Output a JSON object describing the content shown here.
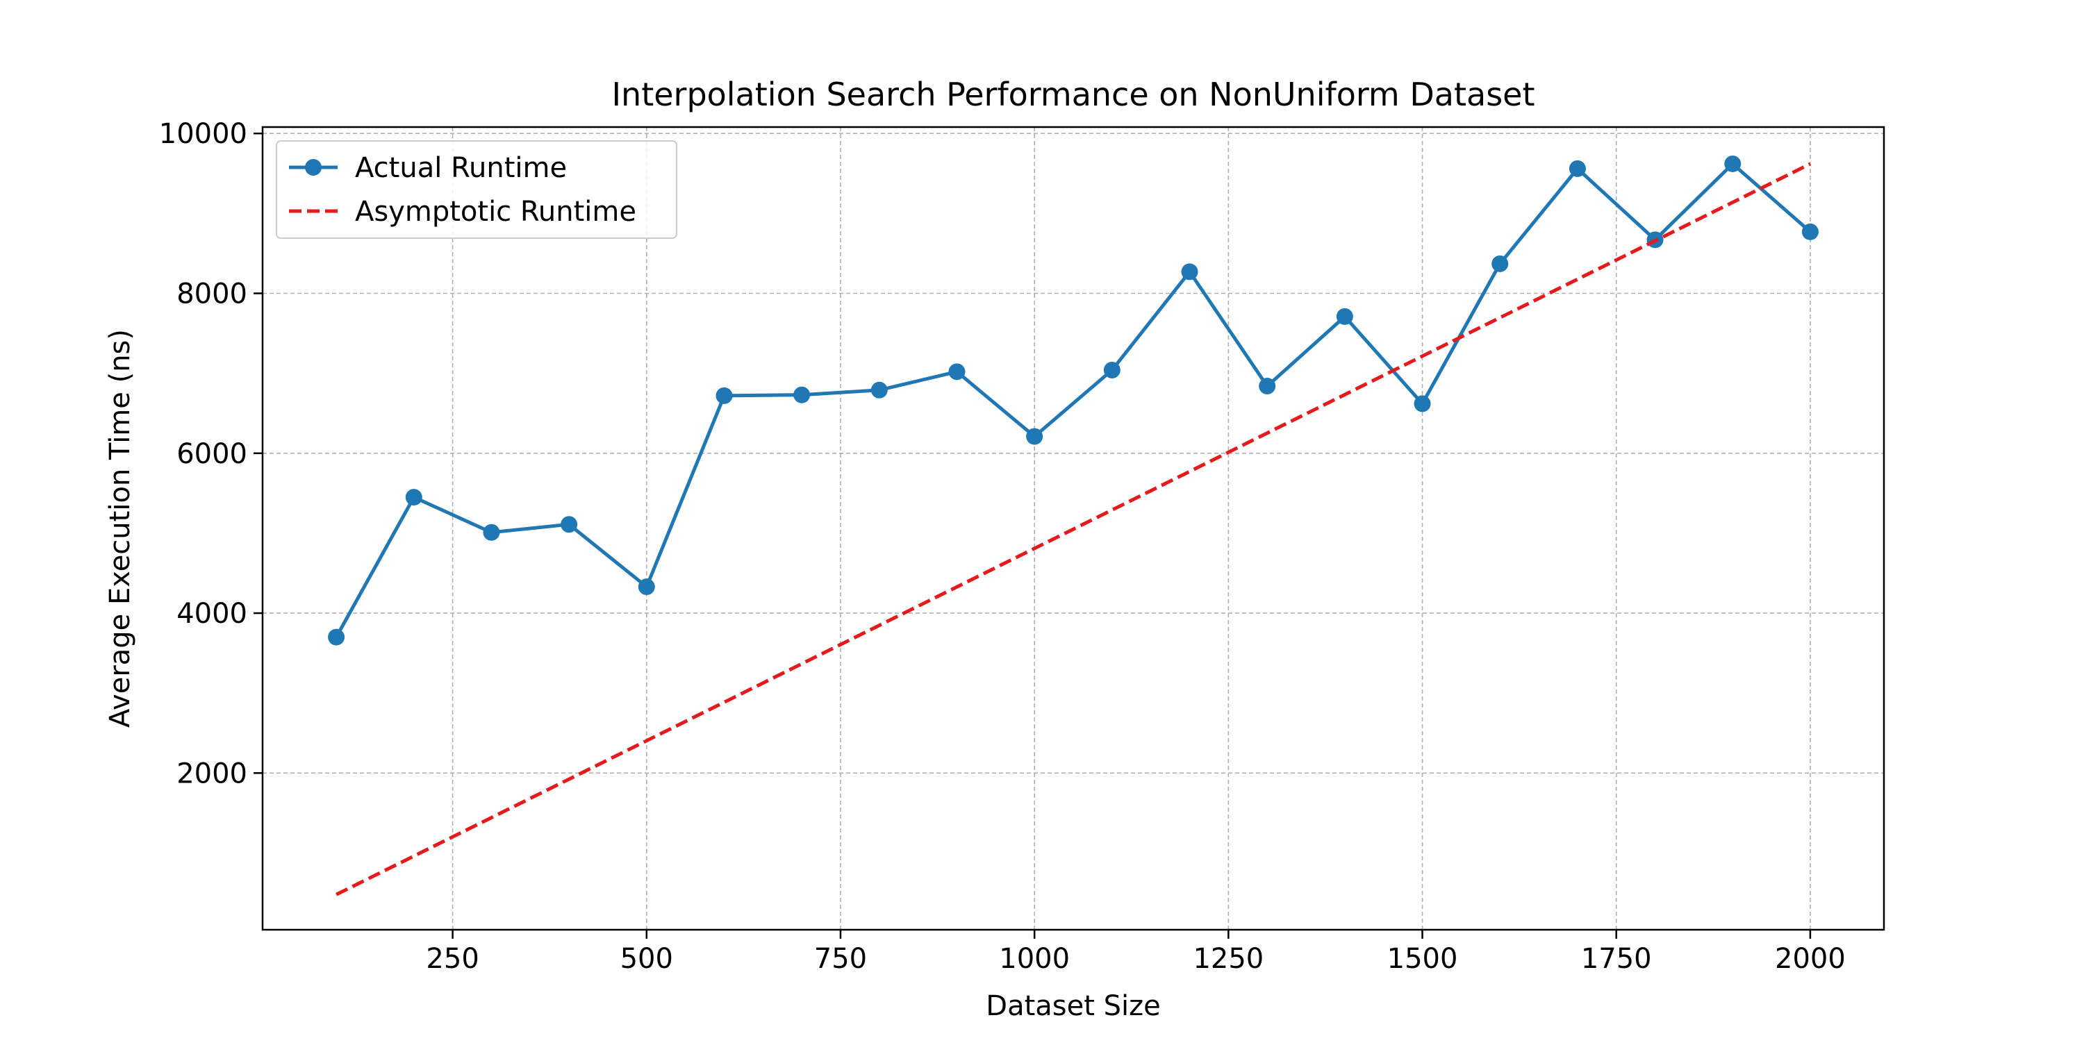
{
  "chart_data": {
    "type": "line",
    "title": "Interpolation Search Performance on NonUniform Dataset",
    "xlabel": "Dataset Size",
    "ylabel": "Average Execution Time (ns)",
    "xlim": [
      5,
      2095
    ],
    "ylim": [
      40,
      10080
    ],
    "x_ticks": [
      250,
      500,
      750,
      1000,
      1250,
      1500,
      1750,
      2000
    ],
    "x_tick_labels": [
      "250",
      "500",
      "750",
      "1000",
      "1250",
      "1500",
      "1750",
      "2000"
    ],
    "y_ticks": [
      2000,
      4000,
      6000,
      8000,
      10000
    ],
    "y_tick_labels": [
      "2000",
      "4000",
      "6000",
      "8000",
      "10000"
    ],
    "grid": true,
    "legend_position": "top-left",
    "series": [
      {
        "name": "Actual Runtime",
        "style": "line-with-circle-markers",
        "color": "#1f77b4",
        "x": [
          100,
          200,
          300,
          400,
          500,
          600,
          700,
          800,
          900,
          1000,
          1100,
          1200,
          1300,
          1400,
          1500,
          1600,
          1700,
          1800,
          1900,
          2000
        ],
        "y": [
          3700,
          5450,
          5010,
          5110,
          4330,
          6720,
          6730,
          6790,
          7020,
          6210,
          7040,
          8270,
          6840,
          7710,
          6620,
          8370,
          9560,
          8670,
          9620,
          8770
        ]
      },
      {
        "name": "Asymptotic Runtime",
        "style": "dashed",
        "color": "#e41a1c",
        "x": [
          100,
          2000
        ],
        "y": [
          480,
          9620
        ]
      }
    ]
  }
}
